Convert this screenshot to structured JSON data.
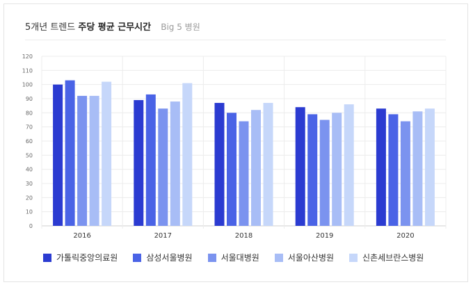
{
  "title": {
    "prefix": "5개년 트렌드",
    "strong": "주당 평균 근무시간",
    "sub": "Big 5 병원"
  },
  "chart_data": {
    "type": "bar",
    "categories": [
      "2016",
      "2017",
      "2018",
      "2019",
      "2020"
    ],
    "ylim": [
      0,
      120
    ],
    "ytick_step": 10,
    "grid": true,
    "legend_position": "bottom",
    "series": [
      {
        "name": "가톨릭중앙의료원",
        "color": "#2b3bd1",
        "values": [
          100,
          89,
          87,
          84,
          83
        ]
      },
      {
        "name": "삼성서울병원",
        "color": "#4a63e6",
        "values": [
          103,
          93,
          80,
          79,
          79
        ]
      },
      {
        "name": "서울대병원",
        "color": "#7b93ef",
        "values": [
          92,
          83,
          74,
          75,
          74
        ]
      },
      {
        "name": "서울아산병원",
        "color": "#a8bdf6",
        "values": [
          92,
          88,
          82,
          80,
          81
        ]
      },
      {
        "name": "신촌세브란스병원",
        "color": "#c6d7fa",
        "values": [
          102,
          101,
          87,
          86,
          83
        ]
      }
    ]
  }
}
